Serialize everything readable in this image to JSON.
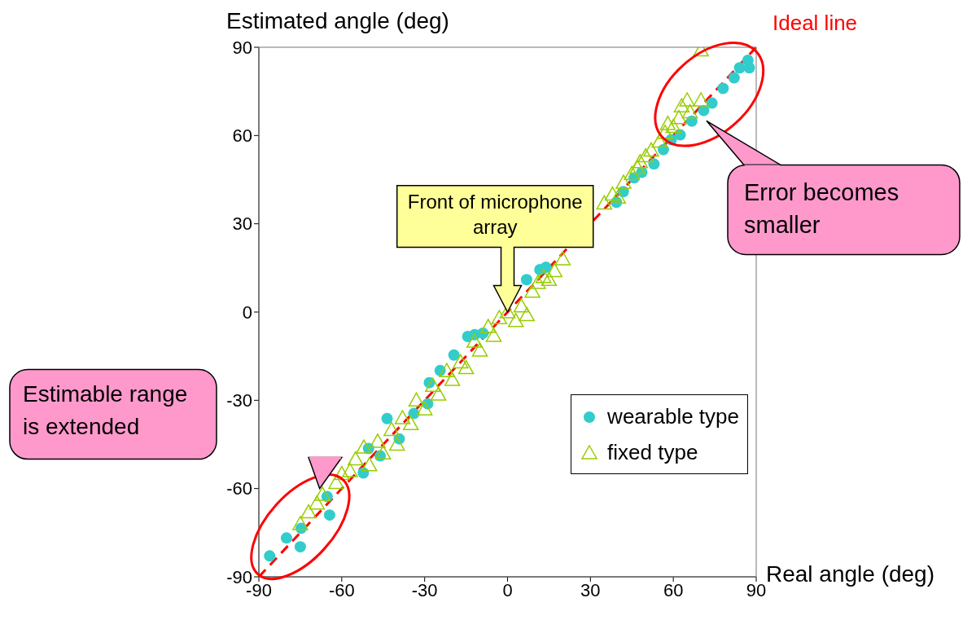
{
  "chart_data": {
    "type": "scatter",
    "xlabel": "Real angle (deg)",
    "ylabel": "Estimated angle (deg)",
    "xlim": [
      -90,
      90
    ],
    "ylim": [
      -90,
      90
    ],
    "xticks": [
      -90,
      -60,
      -30,
      0,
      30,
      60,
      90
    ],
    "yticks": [
      -90,
      -60,
      -30,
      0,
      30,
      60,
      90
    ],
    "legend": "bottom right",
    "series": [
      {
        "name": "wearable type",
        "color": "#33cccc",
        "marker": "circle",
        "x": [
          -86.1,
          -80,
          -75,
          -74.7,
          -65.3,
          -64.4,
          -52.2,
          -50.3,
          -46.1,
          -43.6,
          -39.2,
          -33.9,
          -28.9,
          -28.3,
          -24.4,
          -19.4,
          -14.4,
          -11.9,
          -8.9,
          6.9,
          11.7,
          13.9,
          39.4,
          41.9,
          45.8,
          48.6,
          53,
          56.4,
          59.2,
          62.5,
          66.7,
          71,
          74,
          78,
          82,
          84,
          87,
          87.5
        ],
        "values": [
          -82.9,
          -76.8,
          -79.8,
          -73.5,
          -62.7,
          -69,
          -54.7,
          -46.4,
          -48.9,
          -36.2,
          -43.1,
          -34.5,
          -31.2,
          -24,
          -19.9,
          -14.6,
          -8.3,
          -7.7,
          -7.2,
          11,
          14.4,
          15.2,
          37.3,
          40.9,
          45.6,
          47.5,
          50.3,
          55.2,
          58.6,
          60.2,
          64.9,
          68.5,
          71,
          76,
          79.6,
          83,
          85.6,
          83
        ]
      },
      {
        "name": "fixed type",
        "color": "#99cc00",
        "marker": "triangle",
        "x": [
          -75,
          -72,
          -69,
          -67,
          -62,
          -60,
          -57,
          -55,
          -52,
          -50,
          -47,
          -45,
          -42,
          -40,
          -38,
          -35,
          -33,
          -30,
          -27,
          -25,
          -22,
          -20,
          -17,
          -15,
          -12,
          -10,
          -7,
          -5,
          -3,
          0,
          3,
          5,
          7,
          9,
          11,
          13,
          15,
          17,
          20,
          35,
          38,
          40,
          42,
          45,
          47,
          48,
          50,
          52,
          55,
          57,
          58,
          60,
          62,
          63,
          65,
          66,
          70,
          70
        ],
        "values": [
          -72,
          -68,
          -65,
          -62,
          -58,
          -55,
          -54,
          -50,
          -46,
          -52,
          -44,
          -48,
          -40,
          -45,
          -36,
          -38,
          -30,
          -33,
          -25,
          -28,
          -20,
          -23,
          -17,
          -19,
          -10,
          -13,
          -5,
          -8,
          -2,
          0,
          -3,
          2,
          -1,
          7,
          10,
          12,
          11,
          14,
          18,
          37,
          40,
          39,
          44,
          47,
          49,
          51,
          53,
          55,
          58,
          61,
          64,
          63,
          66,
          70,
          72,
          68,
          72,
          89
        ]
      },
      {
        "name": "Ideal line",
        "type": "line",
        "color": "#ff0000",
        "line_style": "dashed",
        "marker": "none",
        "x": [
          -90,
          90
        ],
        "values": [
          -90,
          90
        ]
      }
    ],
    "annotations": [
      "Front of microphone array",
      "Error becomes smaller",
      "Estimable range is extended"
    ]
  }
}
